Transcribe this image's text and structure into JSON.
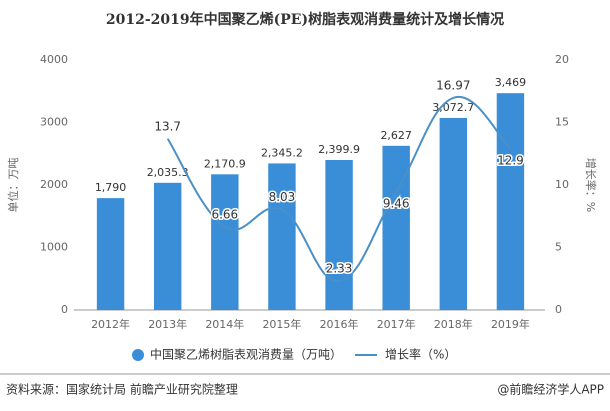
{
  "chart_data": {
    "type": "bar-line",
    "title": "2012-2019年中国聚乙烯(PE)树脂表观消费量统计及增长情况",
    "categories": [
      "2012年",
      "2013年",
      "2014年",
      "2015年",
      "2016年",
      "2017年",
      "2018年",
      "2019年"
    ],
    "series": [
      {
        "name": "中国聚乙烯树脂表观消费量（万吨）",
        "color": "#3a8ed8",
        "type": "bar",
        "values": [
          1790,
          2035.3,
          2170.9,
          2345.2,
          2399.9,
          2627,
          3072.7,
          3469
        ],
        "value_labels": [
          "1,790",
          "2,035.3",
          "2,170.9",
          "2,345.2",
          "2,399.9",
          "2,627",
          "3,072.7",
          "3,469"
        ]
      },
      {
        "name": "增长率（%）",
        "color": "#4a90c8",
        "type": "line",
        "axis": "y2",
        "values": [
          null,
          13.7,
          6.66,
          8.03,
          2.33,
          9.46,
          16.97,
          12.9
        ]
      }
    ],
    "ylabel": "单位：万吨",
    "y2label": "增长率：%",
    "ylim": [
      0,
      4000
    ],
    "yticks": [
      0,
      1000,
      2000,
      3000,
      4000
    ],
    "y2lim": [
      0,
      20
    ],
    "y2ticks": [
      0,
      5,
      10,
      15,
      20
    ],
    "source": "资料来源：国家统计局 前瞻产业研究院整理",
    "credit": "@前瞻经济学人APP"
  }
}
